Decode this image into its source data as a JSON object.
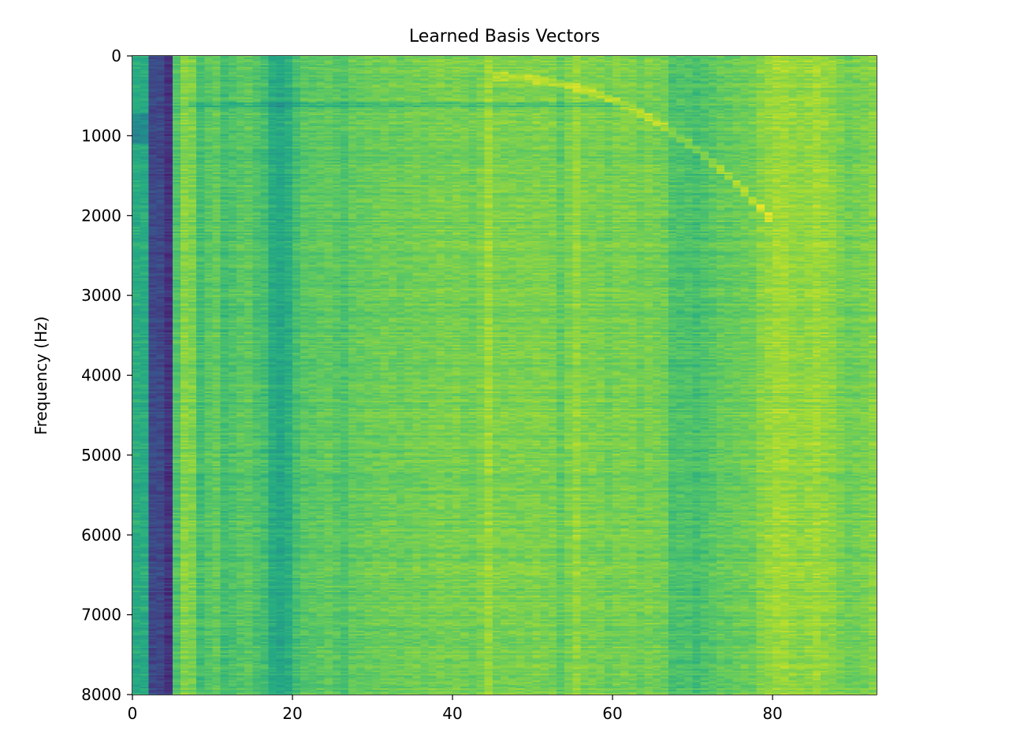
{
  "chart_data": {
    "type": "heatmap",
    "title": "Learned Basis Vectors",
    "xlabel": "",
    "ylabel": "Frequency (Hz)",
    "xlim": [
      0,
      93
    ],
    "ylim": [
      8000,
      0
    ],
    "y_inverted": true,
    "x_ticks": [
      0,
      20,
      40,
      60,
      80
    ],
    "y_ticks": [
      0,
      1000,
      2000,
      3000,
      4000,
      5000,
      6000,
      7000,
      8000
    ],
    "n_columns": 93,
    "colormap": "viridis",
    "column_mean_level": [
      0.62,
      0.62,
      0.22,
      0.22,
      0.15,
      0.72,
      0.82,
      0.8,
      0.7,
      0.74,
      0.76,
      0.7,
      0.72,
      0.74,
      0.75,
      0.72,
      0.7,
      0.62,
      0.6,
      0.63,
      0.7,
      0.74,
      0.74,
      0.75,
      0.76,
      0.74,
      0.72,
      0.76,
      0.76,
      0.77,
      0.77,
      0.78,
      0.78,
      0.77,
      0.78,
      0.79,
      0.78,
      0.79,
      0.8,
      0.79,
      0.8,
      0.79,
      0.78,
      0.8,
      0.85,
      0.8,
      0.8,
      0.8,
      0.8,
      0.8,
      0.81,
      0.8,
      0.8,
      0.76,
      0.8,
      0.84,
      0.8,
      0.8,
      0.8,
      0.78,
      0.8,
      0.8,
      0.8,
      0.78,
      0.8,
      0.79,
      0.78,
      0.72,
      0.72,
      0.72,
      0.7,
      0.72,
      0.74,
      0.76,
      0.76,
      0.77,
      0.78,
      0.78,
      0.82,
      0.84,
      0.86,
      0.86,
      0.84,
      0.83,
      0.84,
      0.86,
      0.84,
      0.83,
      0.8,
      0.78,
      0.79,
      0.8,
      0.82
    ],
    "colors": {
      "viridis_low": "#440154",
      "viridis_mid": "#21918c",
      "viridis_high": "#fde725"
    }
  }
}
